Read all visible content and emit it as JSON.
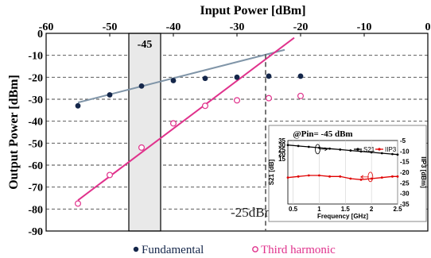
{
  "chart_data": [
    {
      "type": "scatter",
      "xlabel": "Input Power [dBm]",
      "ylabel": "Output Power [dBm]",
      "xlim": [
        -60,
        0
      ],
      "ylim": [
        -90,
        0
      ],
      "x_ticks": [
        "-60",
        "-50",
        "-40",
        "-30",
        "-20",
        "-10",
        "0"
      ],
      "y_ticks": [
        "0",
        "-10",
        "-20",
        "-30",
        "-40",
        "-50",
        "-60",
        "-70",
        "-80",
        "-90"
      ],
      "grid": "horizontal dashed",
      "legend_position": "bottom",
      "series": [
        {
          "name": "Fundamental",
          "color": "#14264a",
          "marker": "filled-circle",
          "x": [
            -55,
            -50,
            -45,
            -40,
            -35,
            -30,
            -25,
            -20
          ],
          "y": [
            -33,
            -28,
            -24,
            -21.5,
            -20.5,
            -20,
            -19.5,
            -19.5
          ]
        },
        {
          "name": "Third harmonic",
          "color": "#e0328c",
          "marker": "open-circle",
          "x": [
            -55,
            -50,
            -45,
            -40,
            -35,
            -30,
            -25,
            -20
          ],
          "y": [
            -77.5,
            -64.5,
            -52,
            -41,
            -33,
            -30.5,
            -29.5,
            -28.5
          ]
        }
      ],
      "fit_lines": [
        {
          "color": "#8095a8",
          "x": [
            -55,
            -22.5
          ],
          "y": [
            -31.5,
            -7.5
          ]
        },
        {
          "color": "#e0328c",
          "x": [
            -55,
            -21
          ],
          "y": [
            -76,
            -2
          ]
        }
      ],
      "highlight_band": {
        "x": [
          -47,
          -42
        ],
        "label": "-45"
      },
      "vertical_marker": {
        "x": -25.5,
        "label": "-25dBm"
      }
    },
    {
      "type": "line",
      "title": "@Pin= -45 dBm",
      "xlabel": "Frequency [GHz]",
      "ylabel_left": "S21 [dB]",
      "ylabel_right": "IIP3 [dBm]",
      "xlim": [
        0.4,
        2.5
      ],
      "ylim_left": [
        -35,
        35
      ],
      "ylim_right": [
        -35,
        -5
      ],
      "x_ticks": [
        "0.5",
        "1",
        "1.5",
        "2",
        "2.5"
      ],
      "y_ticks_left": [
        "35",
        "30",
        "25",
        "20",
        "15",
        "10",
        "5",
        "0",
        "-5",
        "-10",
        "-15",
        "-20",
        "-25",
        "-30",
        "-35"
      ],
      "y_ticks_right": [
        "-5",
        "-10",
        "-15",
        "-20",
        "-25",
        "-30",
        "-35"
      ],
      "legend_position": "top-right",
      "series": [
        {
          "name": "S21",
          "color": "#000000",
          "axis": "left",
          "x": [
            0.4,
            0.6,
            0.8,
            1.0,
            1.2,
            1.4,
            1.6,
            1.8,
            2.0,
            2.2,
            2.4,
            2.5
          ],
          "y": [
            30,
            29,
            28,
            27,
            26,
            25,
            24,
            23,
            22,
            21,
            20,
            19.5
          ]
        },
        {
          "name": "IIP3",
          "color": "#e00000",
          "axis": "right",
          "x": [
            0.4,
            0.6,
            0.8,
            1.0,
            1.2,
            1.4,
            1.6,
            1.8,
            2.0,
            2.2,
            2.4,
            2.5
          ],
          "y": [
            -22.5,
            -22,
            -21.5,
            -21.5,
            -22,
            -22,
            -23,
            -23.5,
            -23,
            -22.5,
            -22,
            -22
          ]
        }
      ]
    }
  ]
}
